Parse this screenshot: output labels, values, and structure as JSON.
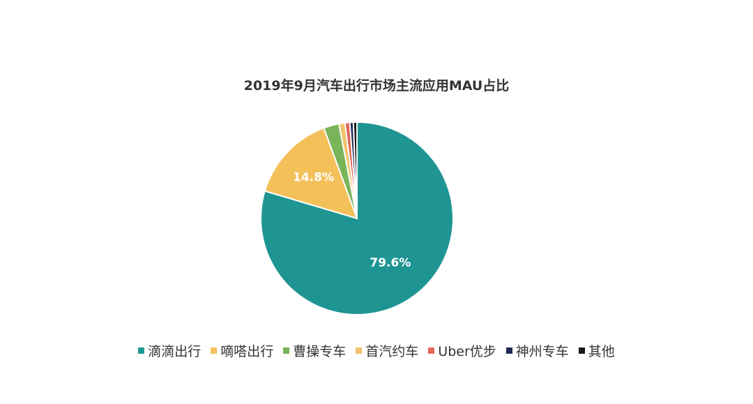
{
  "chart_data": {
    "type": "pie",
    "title": "2019年9月汽车出行市场主流应用MAU占比",
    "slices": [
      {
        "name": "滴滴出行",
        "value": 79.6,
        "label": "79.6%",
        "color": "#1f9593"
      },
      {
        "name": "嘀嗒出行",
        "value": 14.8,
        "label": "14.8%",
        "color": "#f4c05a"
      },
      {
        "name": "曹操专车",
        "value": 2.6,
        "color": "#79b45a"
      },
      {
        "name": "首汽约车",
        "value": 1.0,
        "color": "#f0c36a"
      },
      {
        "name": "Uber优步",
        "value": 0.8,
        "color": "#e06658"
      },
      {
        "name": "神州专车",
        "value": 0.6,
        "color": "#1e2a52"
      },
      {
        "name": "其他",
        "value": 0.6,
        "color": "#1a1a1a"
      }
    ],
    "legend_position": "bottom"
  }
}
